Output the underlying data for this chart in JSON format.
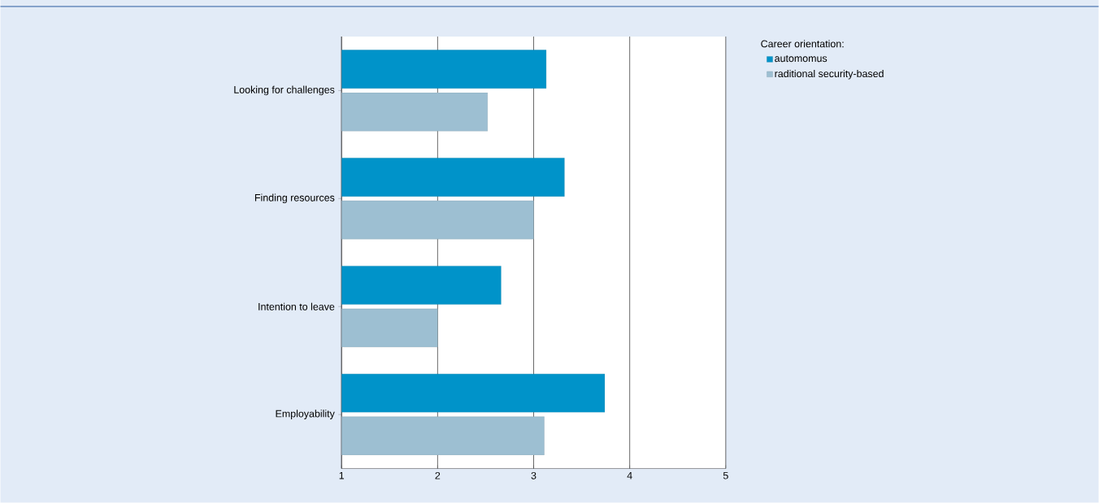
{
  "chart_data": {
    "type": "bar",
    "orientation": "horizontal",
    "categories": [
      "Looking for challenges",
      "Finding resources",
      "Intention to leave",
      "Employability"
    ],
    "series": [
      {
        "name": "automomus",
        "color": "#0093c9",
        "values": [
          3.13,
          3.32,
          2.66,
          3.74
        ]
      },
      {
        "name": "raditional security-based",
        "color": "#9dbfd2",
        "values": [
          2.52,
          3.0,
          2.0,
          3.11
        ]
      }
    ],
    "xlim": [
      1,
      5
    ],
    "xticks": [
      1,
      2,
      3,
      4,
      5
    ],
    "grid": "x",
    "legend": "top right",
    "legend_title": "Career orientation:"
  }
}
